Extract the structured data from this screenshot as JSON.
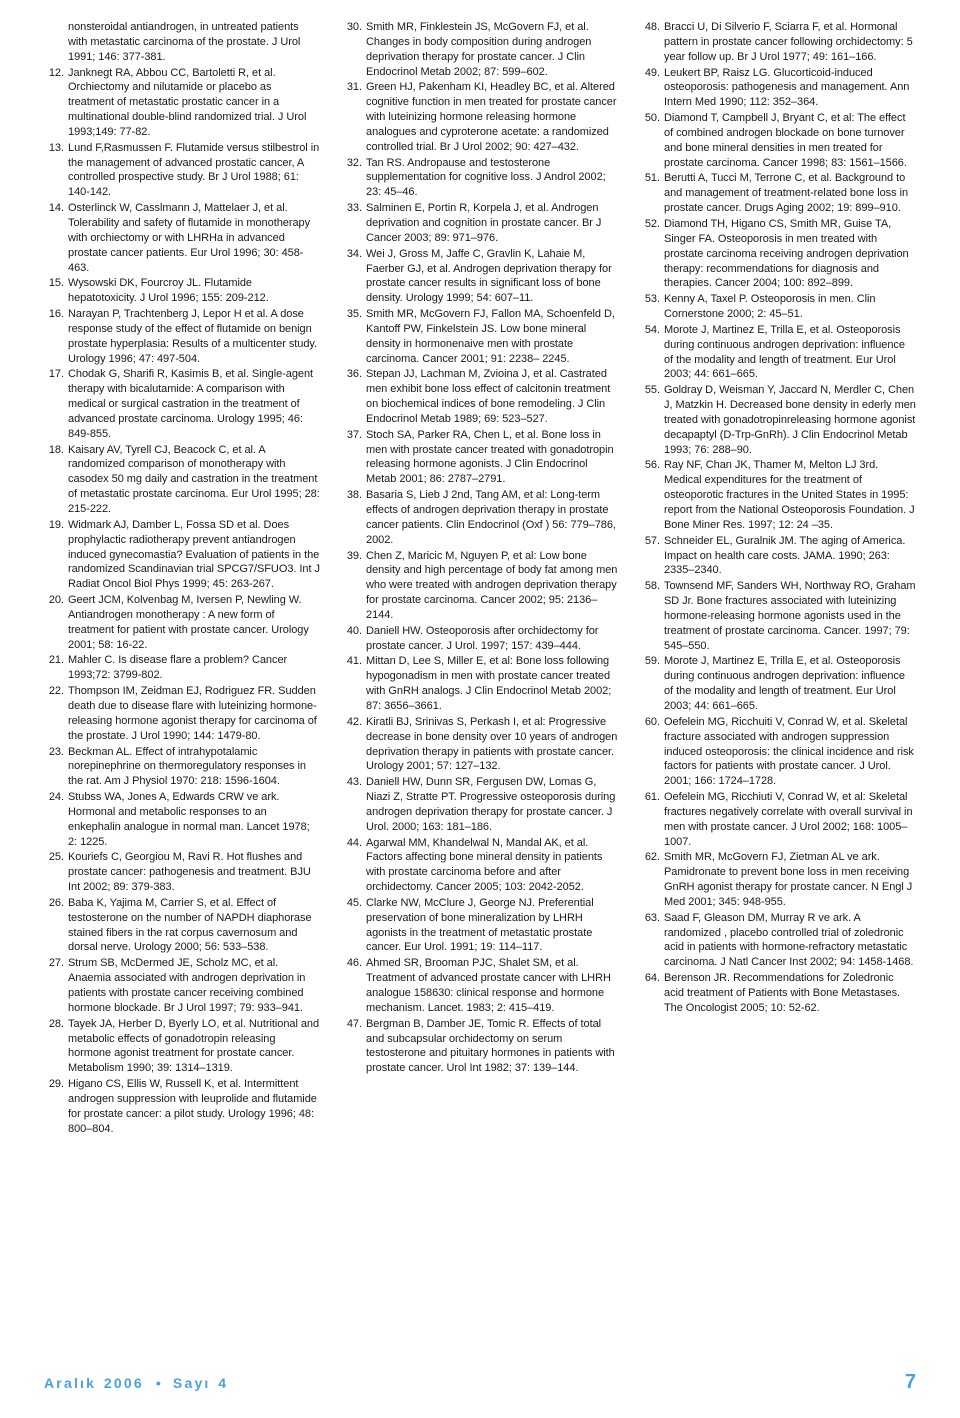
{
  "columns": [
    {
      "fragment": "nonsteroidal antiandrogen, in untreated patients with metastatic carcinoma of the prostate. J Urol 1991; 146: 377-381.",
      "start": 12,
      "refs": [
        "Janknegt RA, Abbou CC, Bartoletti R, et al. Orchiectomy and nilutamide or placebo as treatment of metastatic prostatic cancer in a multinational double-blind randomized trial. J Urol 1993;149: 77-82.",
        "Lund F,Rasmussen F. Flutamide versus stilbestrol in the management of advanced prostatic cancer, A controlled prospective study. Br J Urol 1988; 61: 140-142.",
        "Osterlinck W, Casslmann J, Mattelaer J, et al. Tolerability and safety of flutamide in monotherapy with orchiectomy or with LHRHa in advanced prostate cancer patients. Eur Urol 1996; 30: 458-463.",
        "Wysowski DK, Fourcroy JL. Flutamide hepatotoxicity. J Urol 1996; 155: 209-212.",
        "Narayan P, Trachtenberg J, Lepor H et al. A dose response study of the effect of flutamide on benign prostate hyperplasia: Results of a multicenter study. Urology 1996; 47: 497-504.",
        "Chodak G, Sharifi R, Kasimis B, et al. Single-agent therapy with bicalutamide: A comparison with medical or surgical castration in the treatment of advanced prostate carcinoma. Urology 1995; 46: 849-855.",
        "Kaisary AV, Tyrell CJ, Beacock C, et al. A randomized comparison of monotherapy with casodex 50 mg daily and castration in the treatment of metastatic prostate carcinoma. Eur Urol 1995; 28: 215-222.",
        "Widmark AJ, Damber L, Fossa SD et al. Does prophylactic radiotherapy prevent antiandrogen induced gynecomastia? Evaluation of patients in the randomized Scandinavian trial SPCG7/SFUO3. Int J Radiat Oncol Biol Phys 1999; 45: 263-267.",
        "Geert JCM, Kolvenbag M, Iversen P, Newling W. Antiandrogen monotherapy : A new form of treatment for patient with prostate cancer. Urology 2001; 58: 16-22.",
        "Mahler C. Is disease flare a problem? Cancer 1993;72: 3799-802.",
        "Thompson IM, Zeidman EJ, Rodriguez FR. Sudden death due to disease flare with luteinizing hormone-releasing hormone agonist therapy for carcinoma of the prostate. J Urol 1990; 144: 1479-80.",
        "Beckman AL. Effect of intrahypotalamic norepinephrine on thermoregulatory responses in the rat. Am J Physiol 1970: 218: 1596-1604.",
        "Stubss WA, Jones A, Edwards CRW ve ark. Hormonal and metabolic responses to an enkephalin analogue in normal man. Lancet 1978; 2: 1225.",
        "Kouriefs C, Georgiou M, Ravi R. Hot flushes and prostate cancer: pathogenesis and treatment. BJU Int 2002; 89: 379-383.",
        "Baba K, Yajima M, Carrier S, et al. Effect of testosterone on the number of NAPDH diaphorase stained fibers in the rat corpus cavernosum and dorsal nerve. Urology 2000; 56: 533–538.",
        "Strum SB, McDermed JE, Scholz MC, et al. Anaemia associated with androgen deprivation in patients with prostate cancer receiving combined hormone blockade. Br J Urol 1997; 79: 933–941.",
        "Tayek JA, Herber D, Byerly LO, et al. Nutritional and metabolic effects of gonadotropin releasing hormone agonist treatment for prostate cancer. Metabolism 1990; 39: 1314–1319.",
        "Higano CS, Ellis W, Russell K, et al. Intermittent androgen suppression with leuprolide and flutamide for prostate cancer: a pilot study. Urology 1996; 48: 800–804."
      ]
    },
    {
      "start": 30,
      "refs": [
        "Smith MR, Finklestein JS, McGovern FJ, et al. Changes in body composition during androgen deprivation therapy for prostate cancer. J Clin Endocrinol Metab 2002; 87: 599–602.",
        "Green HJ, Pakenham KI, Headley BC, et al. Altered cognitive function in men treated for prostate cancer with luteinizing hormone releasing hormone analogues and cyproterone acetate: a randomized controlled trial. Br J Urol 2002; 90: 427–432.",
        "Tan RS. Andropause and testosterone supplementation for cognitive loss. J Androl 2002; 23: 45–46.",
        "Salminen E, Portin R, Korpela J, et al. Androgen deprivation and cognition in prostate cancer. Br J Cancer 2003; 89: 971–976.",
        "Wei J, Gross M, Jaffe C, Gravlin K, Lahaie M, Faerber GJ, et al. Androgen deprivation therapy for prostate cancer results in significant loss of bone density. Urology 1999; 54: 607–11.",
        "Smith MR, McGovern FJ, Fallon MA, Schoenfeld D, Kantoff PW, Finkelstein JS. Low bone mineral density in hormonenaive men with prostate carcinoma. Cancer 2001; 91: 2238– 2245.",
        "Stepan JJ, Lachman M, Zvioina J, et al. Castrated men exhibit bone loss effect of calcitonin treatment on biochemical indices of bone remodeling. J Clin Endocrinol Metab 1989; 69: 523–527.",
        "Stoch SA, Parker RA, Chen L, et al. Bone loss in men with prostate cancer treated with gonadotropin releasing hormone agonists. J Clin Endocrinol Metab 2001; 86: 2787–2791.",
        "Basaria S, Lieb J 2nd, Tang AM, et al: Long-term effects of androgen deprivation therapy in prostate cancer patients. Clin Endocrinol (Oxf ) 56: 779–786, 2002.",
        "Chen Z, Maricic M, Nguyen P, et al: Low bone density and high percentage of body fat among men who were treated with androgen deprivation therapy for prostate carcinoma. Cancer 2002; 95: 2136–2144.",
        "Daniell HW. Osteoporosis after orchidectomy for prostate cancer. J Urol. 1997; 157: 439–444.",
        "Mittan D, Lee S, Miller E, et al: Bone loss following hypogonadism in men with prostate cancer treated with GnRH analogs. J Clin Endocrinol Metab 2002; 87: 3656–3661.",
        "Kiratli BJ, Srinivas S, Perkash I, et al: Progressive decrease in bone density over 10 years of androgen deprivation therapy in patients with prostate cancer. Urology 2001; 57: 127–132.",
        "Daniell HW, Dunn SR, Fergusen DW, Lomas G, Niazi Z, Stratte PT. Progressive osteoporosis during androgen deprivation therapy for prostate cancer. J Urol. 2000; 163: 181–186.",
        "Agarwal MM, Khandelwal N, Mandal AK, et al. Factors affecting bone mineral density in patients with prostate carcinoma before and after orchidectomy. Cancer 2005; 103: 2042-2052.",
        "Clarke NW, McClure J, George NJ. Preferential preservation of bone mineralization by LHRH agonists in the treatment of metastatic prostate cancer. Eur Urol. 1991; 19: 114–117.",
        "Ahmed SR, Brooman PJC, Shalet SM, et al. Treatment of advanced prostate cancer with LHRH analogue 158630: clinical response and hormone mechanism. Lancet. 1983; 2: 415–419.",
        "Bergman B, Damber JE, Tomic R. Effects of total and subcapsular orchidectomy on serum testosterone and pituitary hormones in patients with prostate cancer. Urol Int 1982; 37: 139–144."
      ]
    },
    {
      "start": 48,
      "refs": [
        "Bracci U, Di Silverio F, Sciarra F, et al. Hormonal pattern in prostate cancer following orchidectomy: 5 year follow up. Br J Urol 1977; 49: 161–166.",
        "Leukert BP, Raisz LG. Glucorticoid-induced osteoporosis: pathogenesis and management. Ann Intern Med 1990; 112: 352–364.",
        "Diamond T, Campbell J, Bryant C, et al: The effect of combined androgen blockade on bone turnover and bone mineral densities in men treated for prostate carcinoma. Cancer 1998; 83: 1561–1566.",
        "Berutti A, Tucci M, Terrone C, et al. Background to and management of treatment-related bone loss in prostate cancer. Drugs Aging 2002; 19: 899–910.",
        "Diamond TH, Higano CS, Smith MR, Guise TA, Singer FA. Osteoporosis in men treated with prostate carcinoma receiving androgen deprivation therapy: recommendations for diagnosis and therapies. Cancer 2004; 100: 892–899.",
        "Kenny A, Taxel P. Osteoporosis in men. Clin Cornerstone 2000; 2: 45–51.",
        "Morote J, Martinez E, Trilla E, et al. Osteoporosis during continuous androgen deprivation: influence of the modality and length of treatment. Eur Urol 2003; 44: 661–665.",
        "Goldray D, Weisman Y, Jaccard N, Merdler C, Chen J, Matzkin H. Decreased bone density in ederly men treated with gonadotropinreleasing hormone agonist decapaptyl (D-Trp-GnRh). J Clin Endocrinol Metab 1993; 76: 288–90.",
        "Ray NF, Chan JK, Thamer M, Melton LJ 3rd. Medical expenditures for the treatment of osteoporotic fractures in the United States in 1995: report from the National Osteoporosis Foundation. J Bone Miner Res. 1997; 12: 24 –35.",
        "Schneider EL, Guralnik JM. The aging of America. Impact on health care costs. JAMA. 1990; 263: 2335–2340.",
        "Townsend MF, Sanders WH, Northway RO, Graham SD Jr. Bone fractures associated with luteinizing hormone-releasing hormone agonists used in the treatment of prostate carcinoma. Cancer. 1997; 79: 545–550.",
        "Morote J, Martinez E, Trilla E, et al. Osteoporosis during continuous androgen deprivation: influence of the modality and length of treatment. Eur Urol 2003; 44: 661–665.",
        "Oefelein MG, Ricchuiti V, Conrad W, et al. Skeletal fracture associated with androgen suppression induced osteoporosis: the clinical incidence and risk factors for patients with prostate cancer. J Urol. 2001; 166: 1724–1728.",
        "Oefelein MG, Ricchiuti V, Conrad W, et al: Skeletal fractures negatively correlate with overall survival in men with prostate cancer. J Urol 2002; 168: 1005–1007.",
        "Smith MR, McGovern FJ, Zietman AL ve ark. Pamidronate to prevent bone loss in men receiving GnRH agonist therapy for prostate cancer. N Engl J Med 2001; 345: 948-955.",
        "Saad F, Gleason DM, Murray R ve ark. A randomized , placebo controlled trial of zoledronic acid in patients with hormone-refractory metastatic carcinoma. J Natl Cancer Inst 2002; 94: 1458-1468.",
        "Berenson JR. Recommendations for Zoledronic acid treatment of Patients with Bone Metastases. The Oncologist 2005; 10: 52-62."
      ]
    }
  ],
  "footer": {
    "left_month": "Aralık 2006",
    "left_issue": "Sayı 4",
    "page": "7"
  }
}
